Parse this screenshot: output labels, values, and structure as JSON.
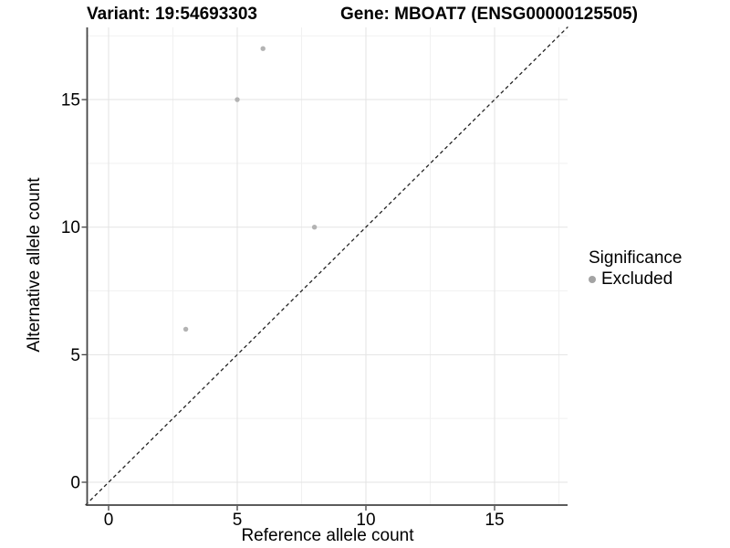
{
  "chart_data": {
    "type": "scatter",
    "title_left": "Variant: 19:54693303",
    "title_right": "Gene: MBOAT7 (ENSG00000125505)",
    "xlabel": "Reference allele count",
    "ylabel": "Alternative allele count",
    "xlim": [
      -0.9,
      17.85
    ],
    "ylim": [
      -0.9,
      17.85
    ],
    "x_ticks": [
      0,
      5,
      10,
      15
    ],
    "y_ticks": [
      0,
      5,
      10,
      15
    ],
    "minor_gridlines": [
      2.5,
      7.5,
      12.5,
      17.5
    ],
    "grid": true,
    "identity_line": {
      "style": "dashed",
      "from": -0.9,
      "to": 17.85
    },
    "series": [
      {
        "name": "Excluded",
        "points": [
          [
            3,
            6
          ],
          [
            5,
            15
          ],
          [
            6,
            17
          ],
          [
            8,
            10
          ]
        ]
      }
    ],
    "legend": {
      "title": "Significance",
      "position": "right",
      "entries": [
        {
          "label": "Excluded",
          "color": "#a3a3a3"
        }
      ]
    }
  },
  "colors": {
    "point": "#b3b3b3",
    "legend_point": "#a3a3a3",
    "grid_major": "#e3e3e3",
    "grid_minor": "#f1f1f1",
    "axis_line": "#454545",
    "tick_mark": "#333333",
    "dashed_line": "#222222",
    "text": "#000000"
  }
}
